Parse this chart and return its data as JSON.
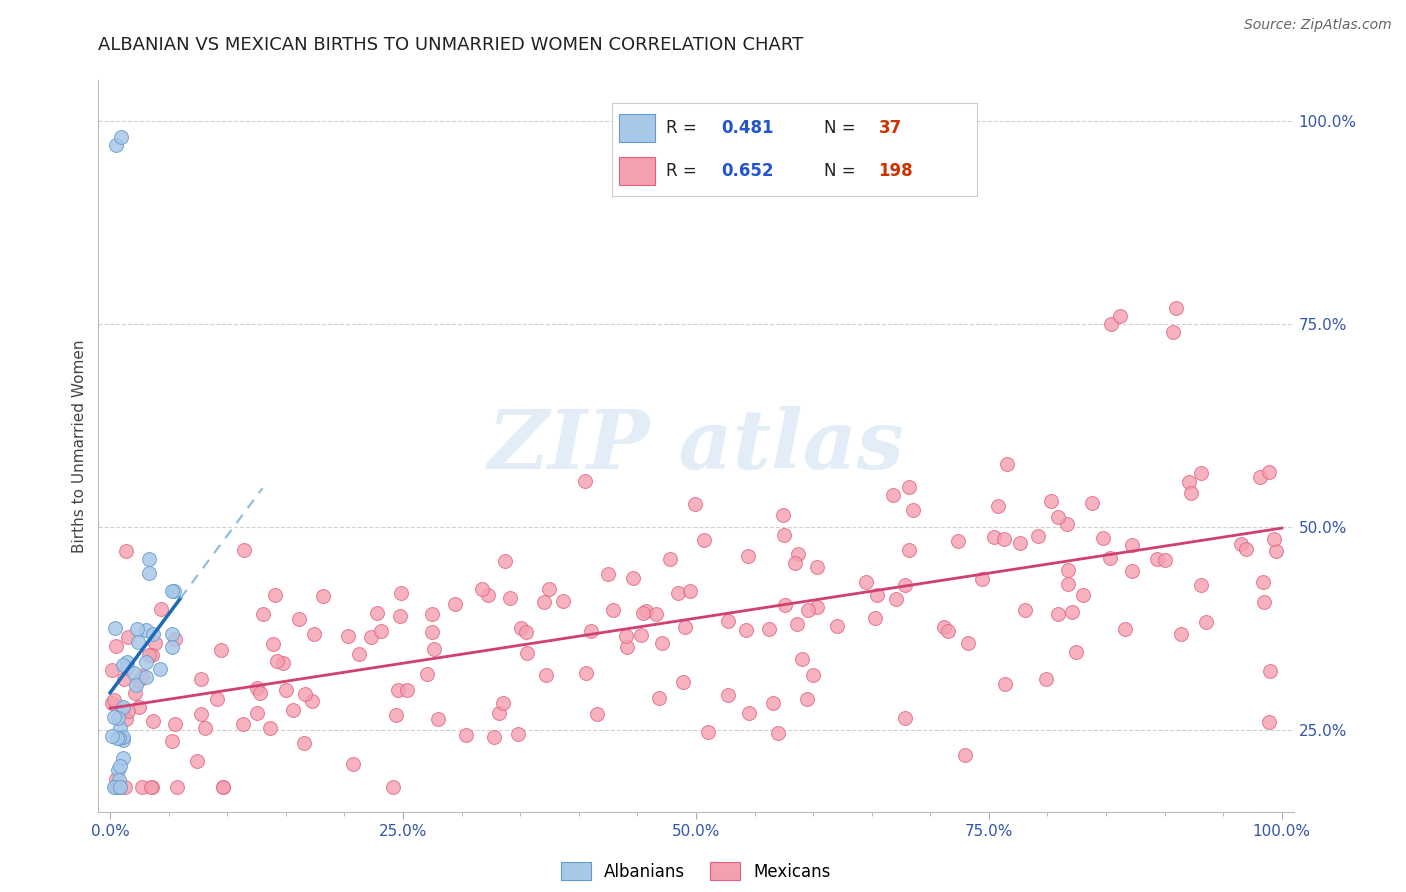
{
  "title": "ALBANIAN VS MEXICAN BIRTHS TO UNMARRIED WOMEN CORRELATION CHART",
  "source": "Source: ZipAtlas.com",
  "ylabel": "Births to Unmarried Women",
  "albanian_color": "#a8c8e8",
  "albanian_edge": "#6699cc",
  "mexican_color": "#f4a0b0",
  "mexican_edge": "#e06080",
  "albanian_R": 0.481,
  "albanian_N": 37,
  "mexican_R": 0.652,
  "mexican_N": 198,
  "albanian_line_color": "#1a6bb5",
  "albanian_dash_color": "#88bbdd",
  "mexican_line_color": "#d04070",
  "background_color": "#ffffff",
  "grid_color": "#cccccc",
  "legend_R_color": "#2255cc",
  "legend_N_color": "#cc3300",
  "watermark_color": "#c8ddf0",
  "title_color": "#222222",
  "tick_color": "#3355aa",
  "xlim": [
    -1,
    101
  ],
  "ylim": [
    15,
    105
  ],
  "x_ticks": [
    0,
    25,
    50,
    75,
    100
  ],
  "x_tick_labels": [
    "0.0%",
    "25.0%",
    "50.0%",
    "75.0%",
    "100.0%"
  ],
  "y_ticks": [
    25,
    50,
    75,
    100
  ],
  "y_tick_labels": [
    "25.0%",
    "50.0%",
    "75.0%",
    "100.0%"
  ]
}
